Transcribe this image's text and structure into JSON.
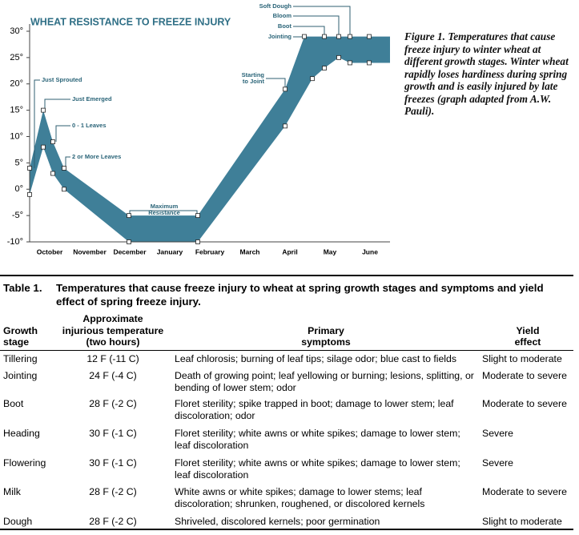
{
  "chart_data": {
    "type": "band",
    "title": "WHEAT RESISTANCE TO FREEZE INJURY",
    "categories": [
      "October",
      "November",
      "December",
      "January",
      "February",
      "March",
      "April",
      "May",
      "June"
    ],
    "ylim": [
      -10,
      30
    ],
    "yticks": [
      {
        "value": -10,
        "label": "-10°"
      },
      {
        "value": -5,
        "label": "-5°"
      },
      {
        "value": 0,
        "label": "0°"
      },
      {
        "value": 5,
        "label": "5°"
      },
      {
        "value": 10,
        "label": "10°"
      },
      {
        "value": 15,
        "label": "15°"
      },
      {
        "value": 20,
        "label": "20°"
      },
      {
        "value": 25,
        "label": "25°"
      },
      {
        "value": 30,
        "label": "30°"
      }
    ],
    "color": "#3f7f98",
    "series": [
      {
        "x": [
          -0.5,
          -0.16,
          0.08,
          0.36,
          1.98,
          3.7,
          5.88,
          6.36,
          6.86,
          7.22,
          7.5,
          7.98,
          8.5
        ],
        "values": [
          4,
          15,
          9,
          4,
          -5,
          -5,
          19,
          29,
          29,
          29,
          29,
          29,
          29
        ]
      },
      {
        "x": [
          -0.5,
          -0.16,
          0.08,
          0.36,
          1.98,
          3.7,
          5.88,
          6.56,
          6.86,
          7.22,
          7.5,
          7.98,
          8.5
        ],
        "values": [
          -1,
          8,
          3,
          0,
          -10,
          -10,
          12,
          21,
          23,
          25,
          24,
          24,
          24
        ]
      }
    ],
    "annotations": [
      [
        "Just Sprouted"
      ],
      [
        "Just Emerged"
      ],
      [
        "0 - 1 Leaves"
      ],
      [
        "2 or More Leaves"
      ],
      [
        "Maximum",
        "Resistance"
      ],
      [
        "Starting",
        "to Joint"
      ],
      [
        "Jointing"
      ],
      [
        "Boot"
      ],
      [
        "Bloom"
      ],
      [
        "Soft Dough"
      ]
    ]
  },
  "figure_caption": {
    "label": "Figure 1.",
    "text": "Temperatures that cause freeze injury to winter wheat at different growth stages. Winter wheat rapidly loses hardiness during spring growth and is easily injured by late freezes (graph adapted from A.W. Pauli)."
  },
  "table": {
    "label": "Table 1.",
    "title": "Temperatures that cause freeze injury to wheat at spring growth stages and symptoms and yield effect of spring freeze injury.",
    "columns": [
      [
        "Growth",
        "stage"
      ],
      [
        "Approximate",
        "injurious temperature",
        "(two hours)"
      ],
      [
        "Primary",
        "symptoms"
      ],
      [
        "Yield",
        "effect"
      ]
    ],
    "rows": [
      [
        "Tillering",
        "12 F (-11 C)",
        "Leaf chlorosis; burning of leaf tips; silage odor; blue cast to fields",
        "Slight to moderate"
      ],
      [
        "Jointing",
        "24 F (-4 C)",
        "Death of growing point; leaf yellowing or burning; lesions, splitting, or bending of lower stem; odor",
        "Moderate to severe"
      ],
      [
        "Boot",
        "28 F (-2 C)",
        "Floret sterility; spike trapped in boot; damage to lower stem; leaf discoloration; odor",
        "Moderate to severe"
      ],
      [
        "Heading",
        "30 F (-1 C)",
        "Floret sterility; white awns or white spikes; damage to lower stem; leaf discoloration",
        "Severe"
      ],
      [
        "Flowering",
        "30 F (-1 C)",
        "Floret sterility; white awns or white spikes; damage to lower stem; leaf discoloration",
        "Severe"
      ],
      [
        "Milk",
        "28 F (-2 C)",
        "White awns or white spikes; damage to lower stems; leaf discoloration; shrunken, roughened, or discolored kernels",
        "Moderate to severe"
      ],
      [
        "Dough",
        "28 F (-2 C)",
        "Shriveled, discolored kernels; poor germination",
        "Slight to moderate"
      ]
    ]
  }
}
